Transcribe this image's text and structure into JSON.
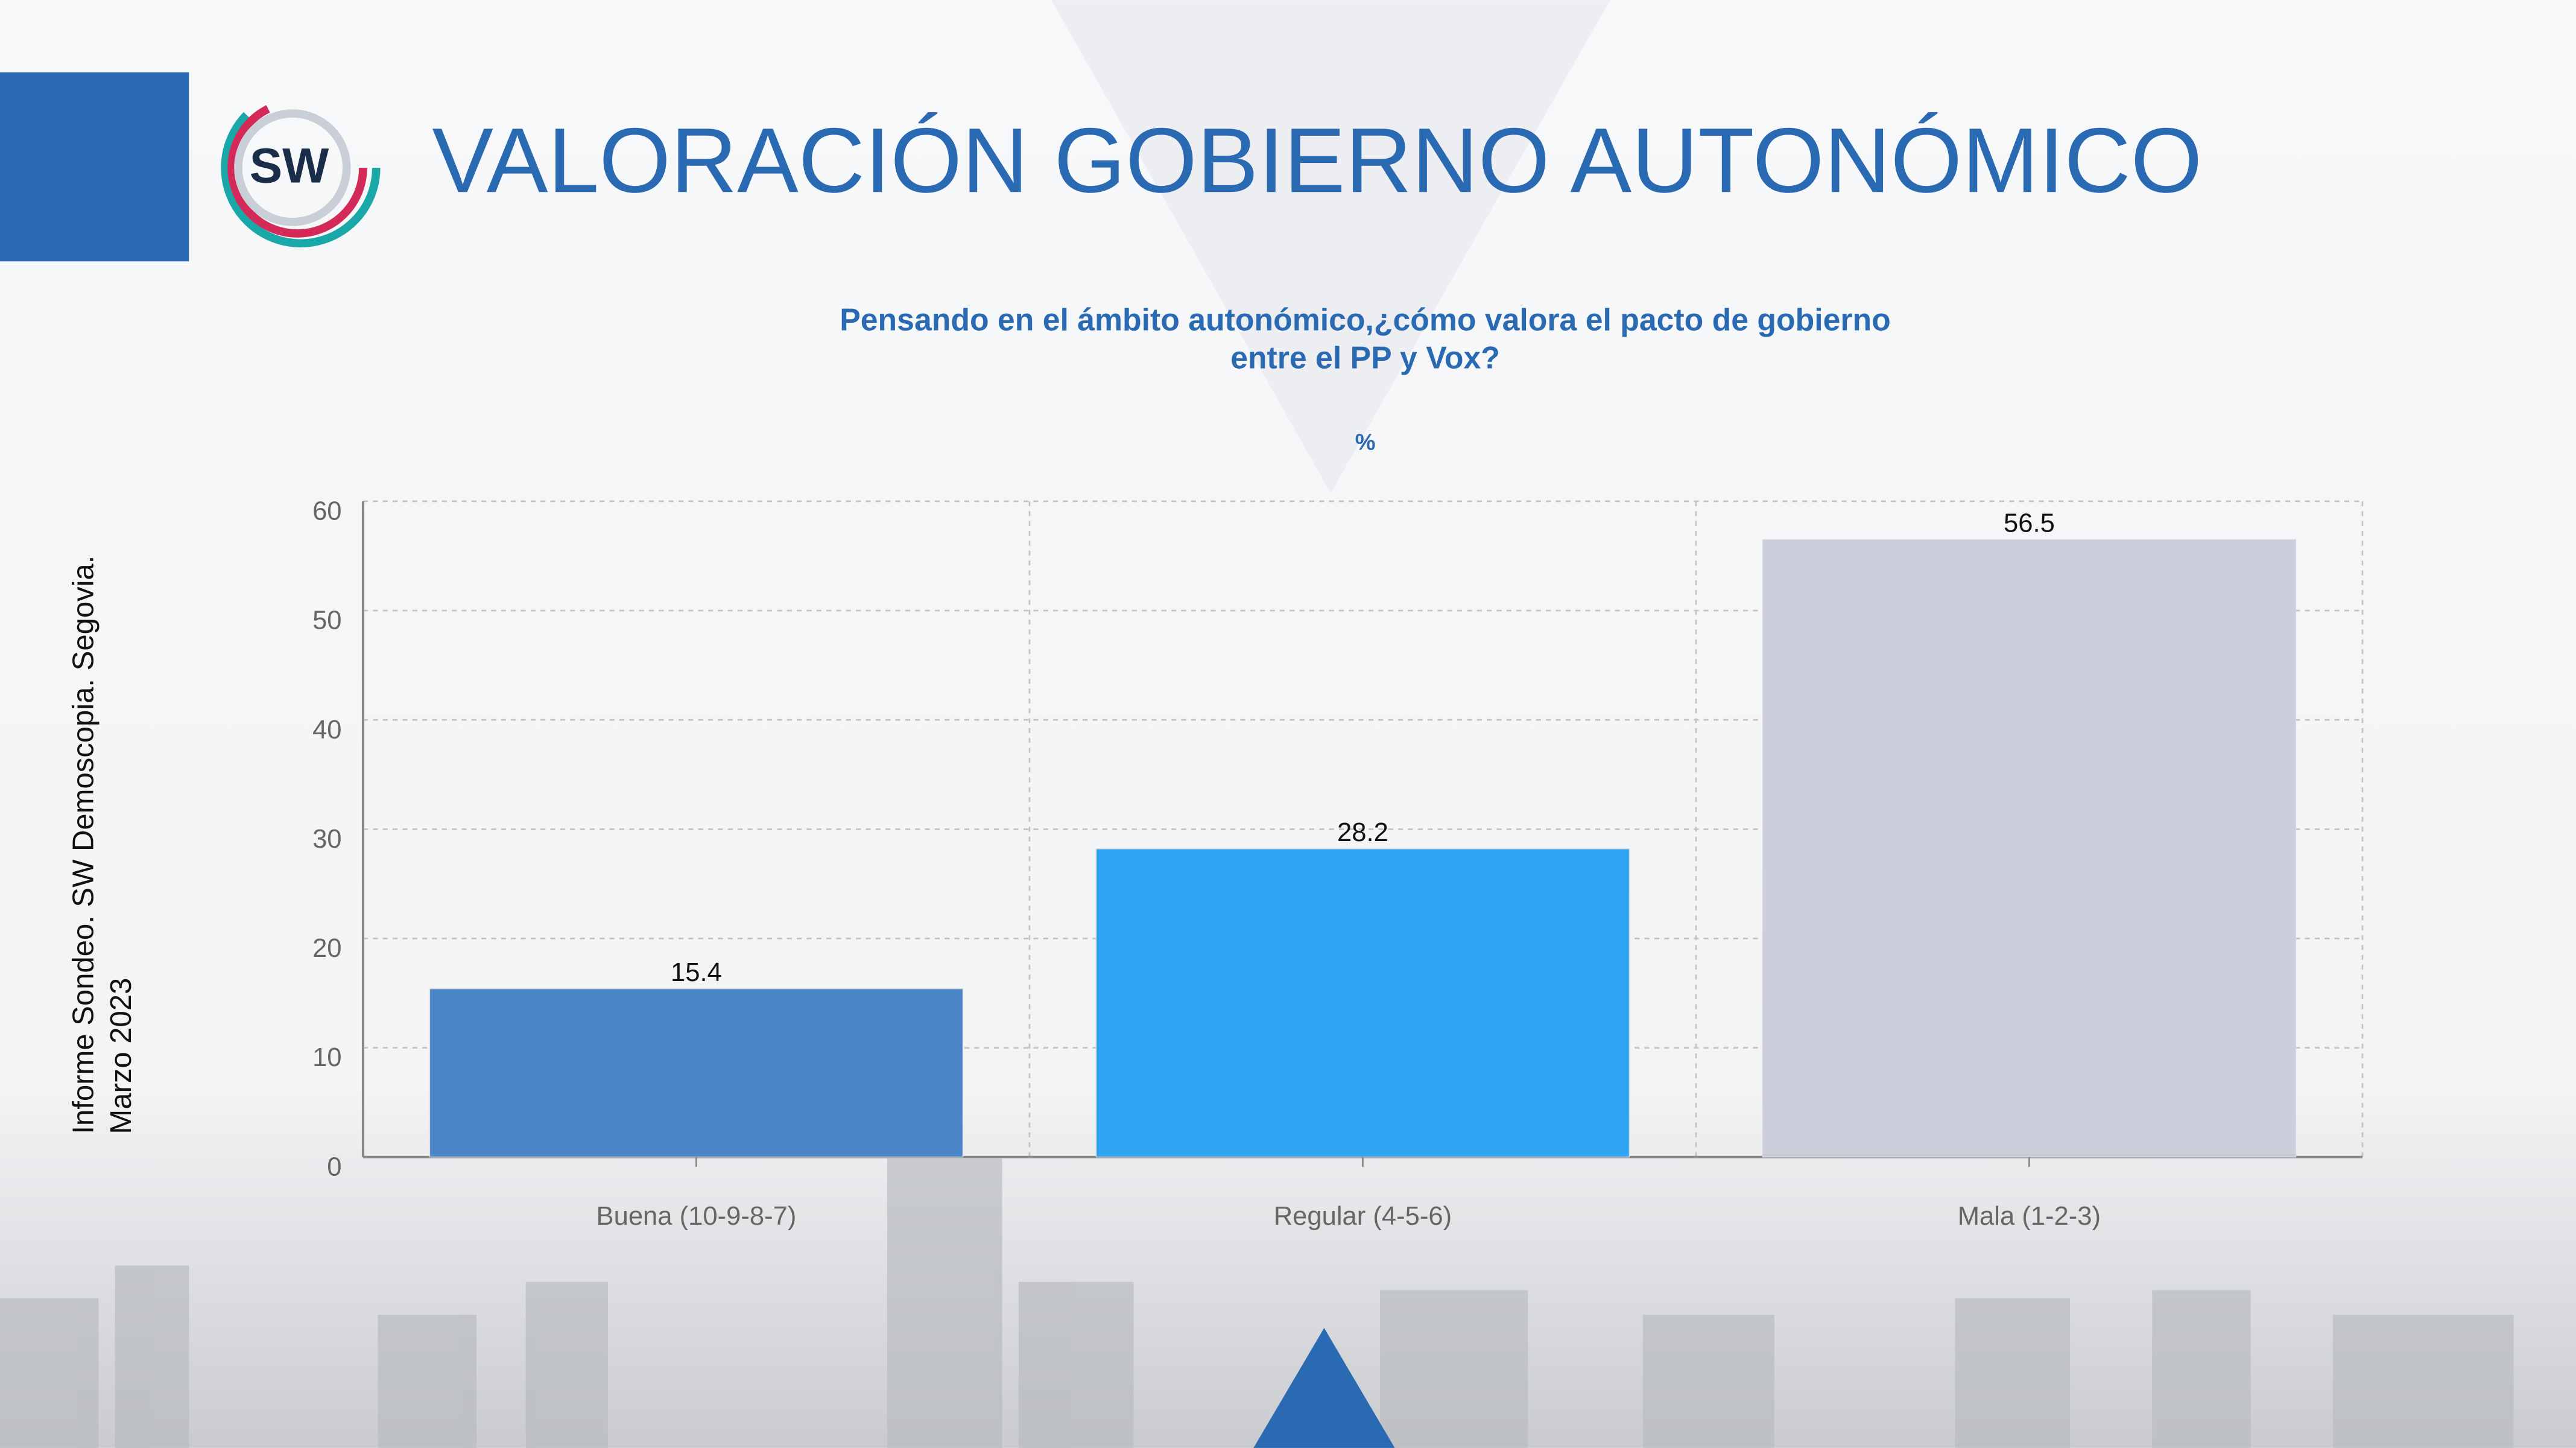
{
  "logo": "SW",
  "side_note": [
    "Informe Sondeo. SW Demoscopia. Segovia.",
    "Marzo 2023"
  ],
  "chart_data": {
    "type": "bar",
    "title": "VALORACIÓN GOBIERNO AUTONÓMICO",
    "subtitle": [
      "Pensando en el ámbito autonómico,¿cómo valora el pacto de gobierno",
      "entre el PP y Vox?"
    ],
    "unit": "%",
    "categories": [
      "Buena (10-9-8-7)",
      "Regular (4-5-6)",
      "Mala (1-2-3)"
    ],
    "values": [
      15.4,
      28.2,
      56.5
    ],
    "colors": [
      "#4a86c8",
      "#2ea3f2",
      "#cccedb"
    ],
    "ylim": [
      0,
      60
    ],
    "yticks": [
      0,
      10,
      20,
      30,
      40,
      50,
      60
    ],
    "grid": true
  }
}
